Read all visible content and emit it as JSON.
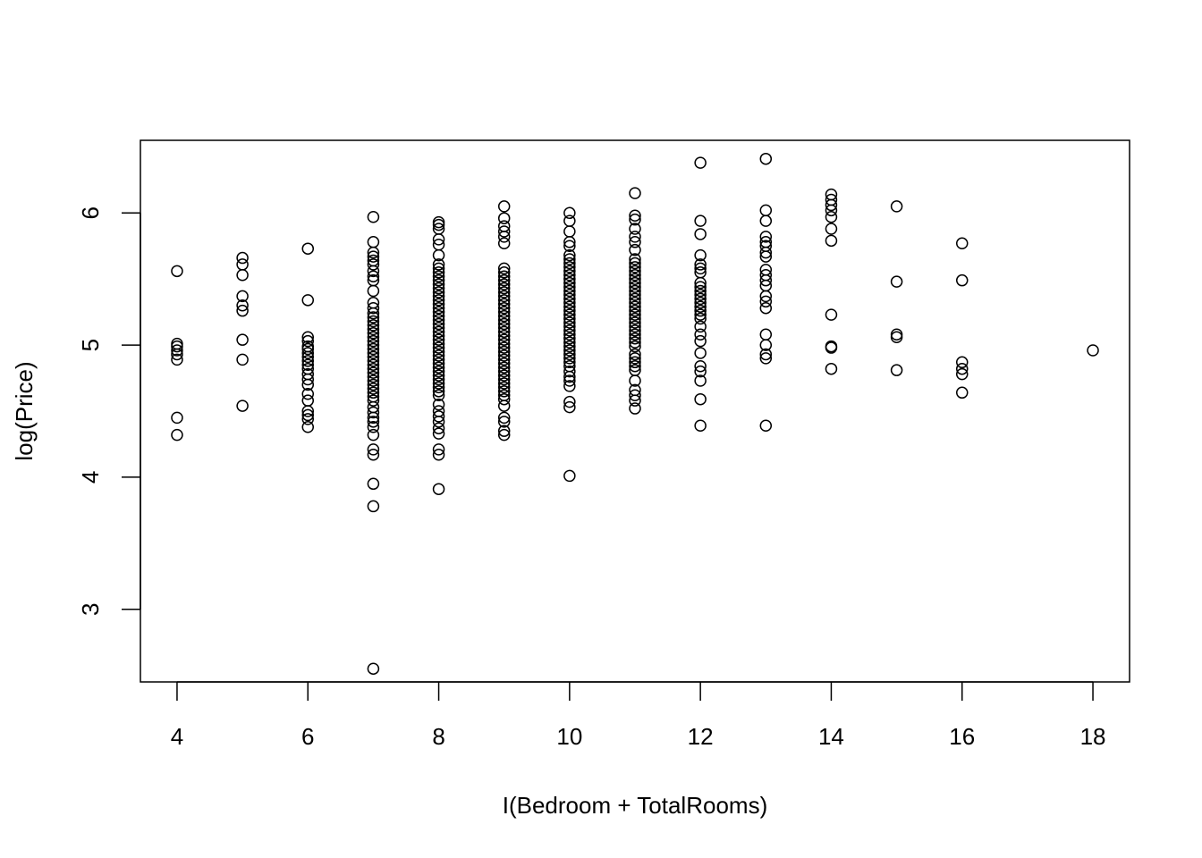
{
  "chart_data": {
    "type": "scatter",
    "title": "",
    "xlabel": "I(Bedroom + TotalRooms)",
    "ylabel": "log(Price)",
    "xlim": [
      3.44,
      18.56
    ],
    "ylim": [
      2.45,
      6.55
    ],
    "xticks": [
      {
        "value": 4,
        "label": "4"
      },
      {
        "value": 6,
        "label": "6"
      },
      {
        "value": 8,
        "label": "8"
      },
      {
        "value": 10,
        "label": "10"
      },
      {
        "value": 12,
        "label": "12"
      },
      {
        "value": 14,
        "label": "14"
      },
      {
        "value": 16,
        "label": "16"
      },
      {
        "value": 18,
        "label": "18"
      }
    ],
    "yticks": [
      {
        "value": 3,
        "label": "3"
      },
      {
        "value": 4,
        "label": "4"
      },
      {
        "value": 5,
        "label": "5"
      },
      {
        "value": 6,
        "label": "6"
      }
    ],
    "grid": false,
    "marker": "open-circle",
    "series": [
      {
        "points": [
          [
            4,
            5.56
          ],
          [
            4,
            5.01
          ],
          [
            4,
            4.99
          ],
          [
            4,
            4.96
          ],
          [
            4,
            4.93
          ],
          [
            4,
            4.89
          ],
          [
            4,
            4.45
          ],
          [
            4,
            4.32
          ],
          [
            5,
            5.66
          ],
          [
            5,
            5.61
          ],
          [
            5,
            5.53
          ],
          [
            5,
            5.37
          ],
          [
            5,
            5.3
          ],
          [
            5,
            5.26
          ],
          [
            5,
            5.04
          ],
          [
            5,
            4.89
          ],
          [
            5,
            4.54
          ],
          [
            6,
            5.73
          ],
          [
            6,
            5.34
          ],
          [
            6,
            5.06
          ],
          [
            6,
            5.03
          ],
          [
            6,
            4.99
          ],
          [
            6,
            4.97
          ],
          [
            6,
            4.94
          ],
          [
            6,
            4.91
          ],
          [
            6,
            4.88
          ],
          [
            6,
            4.85
          ],
          [
            6,
            4.82
          ],
          [
            6,
            4.78
          ],
          [
            6,
            4.74
          ],
          [
            6,
            4.7
          ],
          [
            6,
            4.63
          ],
          [
            6,
            4.58
          ],
          [
            6,
            4.5
          ],
          [
            6,
            4.47
          ],
          [
            6,
            4.44
          ],
          [
            6,
            4.38
          ],
          [
            7,
            5.97
          ],
          [
            7,
            5.78
          ],
          [
            7,
            5.7
          ],
          [
            7,
            5.67
          ],
          [
            7,
            5.64
          ],
          [
            7,
            5.61
          ],
          [
            7,
            5.56
          ],
          [
            7,
            5.52
          ],
          [
            7,
            5.49
          ],
          [
            7,
            5.41
          ],
          [
            7,
            5.32
          ],
          [
            7,
            5.28
          ],
          [
            7,
            5.24
          ],
          [
            7,
            5.21
          ],
          [
            7,
            5.18
          ],
          [
            7,
            5.15
          ],
          [
            7,
            5.12
          ],
          [
            7,
            5.09
          ],
          [
            7,
            5.06
          ],
          [
            7,
            5.03
          ],
          [
            7,
            5.0
          ],
          [
            7,
            4.97
          ],
          [
            7,
            4.94
          ],
          [
            7,
            4.91
          ],
          [
            7,
            4.88
          ],
          [
            7,
            4.85
          ],
          [
            7,
            4.82
          ],
          [
            7,
            4.79
          ],
          [
            7,
            4.76
          ],
          [
            7,
            4.73
          ],
          [
            7,
            4.7
          ],
          [
            7,
            4.67
          ],
          [
            7,
            4.64
          ],
          [
            7,
            4.61
          ],
          [
            7,
            4.58
          ],
          [
            7,
            4.53
          ],
          [
            7,
            4.49
          ],
          [
            7,
            4.45
          ],
          [
            7,
            4.42
          ],
          [
            7,
            4.38
          ],
          [
            7,
            4.32
          ],
          [
            7,
            4.21
          ],
          [
            7,
            4.17
          ],
          [
            7,
            3.95
          ],
          [
            7,
            3.78
          ],
          [
            7,
            2.55
          ],
          [
            8,
            5.93
          ],
          [
            8,
            5.91
          ],
          [
            8,
            5.88
          ],
          [
            8,
            5.8
          ],
          [
            8,
            5.76
          ],
          [
            8,
            5.68
          ],
          [
            8,
            5.61
          ],
          [
            8,
            5.58
          ],
          [
            8,
            5.55
          ],
          [
            8,
            5.52
          ],
          [
            8,
            5.49
          ],
          [
            8,
            5.46
          ],
          [
            8,
            5.43
          ],
          [
            8,
            5.4
          ],
          [
            8,
            5.37
          ],
          [
            8,
            5.34
          ],
          [
            8,
            5.31
          ],
          [
            8,
            5.28
          ],
          [
            8,
            5.25
          ],
          [
            8,
            5.22
          ],
          [
            8,
            5.19
          ],
          [
            8,
            5.16
          ],
          [
            8,
            5.13
          ],
          [
            8,
            5.1
          ],
          [
            8,
            5.07
          ],
          [
            8,
            5.04
          ],
          [
            8,
            5.01
          ],
          [
            8,
            4.98
          ],
          [
            8,
            4.95
          ],
          [
            8,
            4.92
          ],
          [
            8,
            4.89
          ],
          [
            8,
            4.86
          ],
          [
            8,
            4.83
          ],
          [
            8,
            4.8
          ],
          [
            8,
            4.77
          ],
          [
            8,
            4.74
          ],
          [
            8,
            4.71
          ],
          [
            8,
            4.68
          ],
          [
            8,
            4.65
          ],
          [
            8,
            4.62
          ],
          [
            8,
            4.55
          ],
          [
            8,
            4.5
          ],
          [
            8,
            4.46
          ],
          [
            8,
            4.42
          ],
          [
            8,
            4.37
          ],
          [
            8,
            4.33
          ],
          [
            8,
            4.21
          ],
          [
            8,
            4.17
          ],
          [
            8,
            3.91
          ],
          [
            9,
            6.05
          ],
          [
            9,
            5.96
          ],
          [
            9,
            5.9
          ],
          [
            9,
            5.86
          ],
          [
            9,
            5.82
          ],
          [
            9,
            5.77
          ],
          [
            9,
            5.58
          ],
          [
            9,
            5.55
          ],
          [
            9,
            5.52
          ],
          [
            9,
            5.49
          ],
          [
            9,
            5.46
          ],
          [
            9,
            5.43
          ],
          [
            9,
            5.4
          ],
          [
            9,
            5.37
          ],
          [
            9,
            5.34
          ],
          [
            9,
            5.31
          ],
          [
            9,
            5.28
          ],
          [
            9,
            5.25
          ],
          [
            9,
            5.22
          ],
          [
            9,
            5.19
          ],
          [
            9,
            5.16
          ],
          [
            9,
            5.13
          ],
          [
            9,
            5.1
          ],
          [
            9,
            5.07
          ],
          [
            9,
            5.04
          ],
          [
            9,
            5.01
          ],
          [
            9,
            4.98
          ],
          [
            9,
            4.95
          ],
          [
            9,
            4.92
          ],
          [
            9,
            4.89
          ],
          [
            9,
            4.86
          ],
          [
            9,
            4.83
          ],
          [
            9,
            4.8
          ],
          [
            9,
            4.77
          ],
          [
            9,
            4.74
          ],
          [
            9,
            4.71
          ],
          [
            9,
            4.68
          ],
          [
            9,
            4.65
          ],
          [
            9,
            4.62
          ],
          [
            9,
            4.59
          ],
          [
            9,
            4.54
          ],
          [
            9,
            4.45
          ],
          [
            9,
            4.42
          ],
          [
            9,
            4.35
          ],
          [
            9,
            4.32
          ],
          [
            10,
            6.0
          ],
          [
            10,
            5.94
          ],
          [
            10,
            5.86
          ],
          [
            10,
            5.78
          ],
          [
            10,
            5.75
          ],
          [
            10,
            5.68
          ],
          [
            10,
            5.65
          ],
          [
            10,
            5.62
          ],
          [
            10,
            5.59
          ],
          [
            10,
            5.56
          ],
          [
            10,
            5.53
          ],
          [
            10,
            5.5
          ],
          [
            10,
            5.47
          ],
          [
            10,
            5.44
          ],
          [
            10,
            5.41
          ],
          [
            10,
            5.38
          ],
          [
            10,
            5.35
          ],
          [
            10,
            5.32
          ],
          [
            10,
            5.29
          ],
          [
            10,
            5.26
          ],
          [
            10,
            5.23
          ],
          [
            10,
            5.2
          ],
          [
            10,
            5.17
          ],
          [
            10,
            5.14
          ],
          [
            10,
            5.11
          ],
          [
            10,
            5.08
          ],
          [
            10,
            5.05
          ],
          [
            10,
            5.02
          ],
          [
            10,
            4.99
          ],
          [
            10,
            4.96
          ],
          [
            10,
            4.93
          ],
          [
            10,
            4.9
          ],
          [
            10,
            4.87
          ],
          [
            10,
            4.84
          ],
          [
            10,
            4.8
          ],
          [
            10,
            4.76
          ],
          [
            10,
            4.73
          ],
          [
            10,
            4.69
          ],
          [
            10,
            4.57
          ],
          [
            10,
            4.53
          ],
          [
            10,
            4.01
          ],
          [
            11,
            6.15
          ],
          [
            11,
            5.98
          ],
          [
            11,
            5.95
          ],
          [
            11,
            5.88
          ],
          [
            11,
            5.82
          ],
          [
            11,
            5.78
          ],
          [
            11,
            5.72
          ],
          [
            11,
            5.65
          ],
          [
            11,
            5.62
          ],
          [
            11,
            5.59
          ],
          [
            11,
            5.56
          ],
          [
            11,
            5.53
          ],
          [
            11,
            5.5
          ],
          [
            11,
            5.47
          ],
          [
            11,
            5.44
          ],
          [
            11,
            5.41
          ],
          [
            11,
            5.38
          ],
          [
            11,
            5.35
          ],
          [
            11,
            5.32
          ],
          [
            11,
            5.29
          ],
          [
            11,
            5.26
          ],
          [
            11,
            5.23
          ],
          [
            11,
            5.2
          ],
          [
            11,
            5.17
          ],
          [
            11,
            5.14
          ],
          [
            11,
            5.11
          ],
          [
            11,
            5.08
          ],
          [
            11,
            5.05
          ],
          [
            11,
            5.02
          ],
          [
            11,
            4.99
          ],
          [
            11,
            4.93
          ],
          [
            11,
            4.9
          ],
          [
            11,
            4.87
          ],
          [
            11,
            4.84
          ],
          [
            11,
            4.81
          ],
          [
            11,
            4.73
          ],
          [
            11,
            4.66
          ],
          [
            11,
            4.62
          ],
          [
            11,
            4.58
          ],
          [
            11,
            4.52
          ],
          [
            12,
            6.38
          ],
          [
            12,
            5.94
          ],
          [
            12,
            5.84
          ],
          [
            12,
            5.68
          ],
          [
            12,
            5.61
          ],
          [
            12,
            5.58
          ],
          [
            12,
            5.55
          ],
          [
            12,
            5.47
          ],
          [
            12,
            5.44
          ],
          [
            12,
            5.41
          ],
          [
            12,
            5.38
          ],
          [
            12,
            5.35
          ],
          [
            12,
            5.32
          ],
          [
            12,
            5.29
          ],
          [
            12,
            5.26
          ],
          [
            12,
            5.23
          ],
          [
            12,
            5.2
          ],
          [
            12,
            5.14
          ],
          [
            12,
            5.08
          ],
          [
            12,
            5.03
          ],
          [
            12,
            4.94
          ],
          [
            12,
            4.84
          ],
          [
            12,
            4.8
          ],
          [
            12,
            4.73
          ],
          [
            12,
            4.59
          ],
          [
            12,
            4.39
          ],
          [
            13,
            6.41
          ],
          [
            13,
            6.02
          ],
          [
            13,
            5.94
          ],
          [
            13,
            5.82
          ],
          [
            13,
            5.78
          ],
          [
            13,
            5.75
          ],
          [
            13,
            5.7
          ],
          [
            13,
            5.67
          ],
          [
            13,
            5.57
          ],
          [
            13,
            5.53
          ],
          [
            13,
            5.49
          ],
          [
            13,
            5.45
          ],
          [
            13,
            5.37
          ],
          [
            13,
            5.33
          ],
          [
            13,
            5.28
          ],
          [
            13,
            5.08
          ],
          [
            13,
            5.0
          ],
          [
            13,
            4.93
          ],
          [
            13,
            4.9
          ],
          [
            13,
            4.39
          ],
          [
            14,
            6.14
          ],
          [
            14,
            6.1
          ],
          [
            14,
            6.06
          ],
          [
            14,
            6.02
          ],
          [
            14,
            5.97
          ],
          [
            14,
            5.88
          ],
          [
            14,
            5.79
          ],
          [
            14,
            5.23
          ],
          [
            14,
            4.99
          ],
          [
            14,
            4.98
          ],
          [
            14,
            4.82
          ],
          [
            15,
            6.05
          ],
          [
            15,
            5.48
          ],
          [
            15,
            5.08
          ],
          [
            15,
            5.06
          ],
          [
            15,
            4.81
          ],
          [
            16,
            5.77
          ],
          [
            16,
            5.49
          ],
          [
            16,
            4.87
          ],
          [
            16,
            4.82
          ],
          [
            16,
            4.78
          ],
          [
            16,
            4.64
          ],
          [
            18,
            4.96
          ]
        ]
      }
    ]
  }
}
